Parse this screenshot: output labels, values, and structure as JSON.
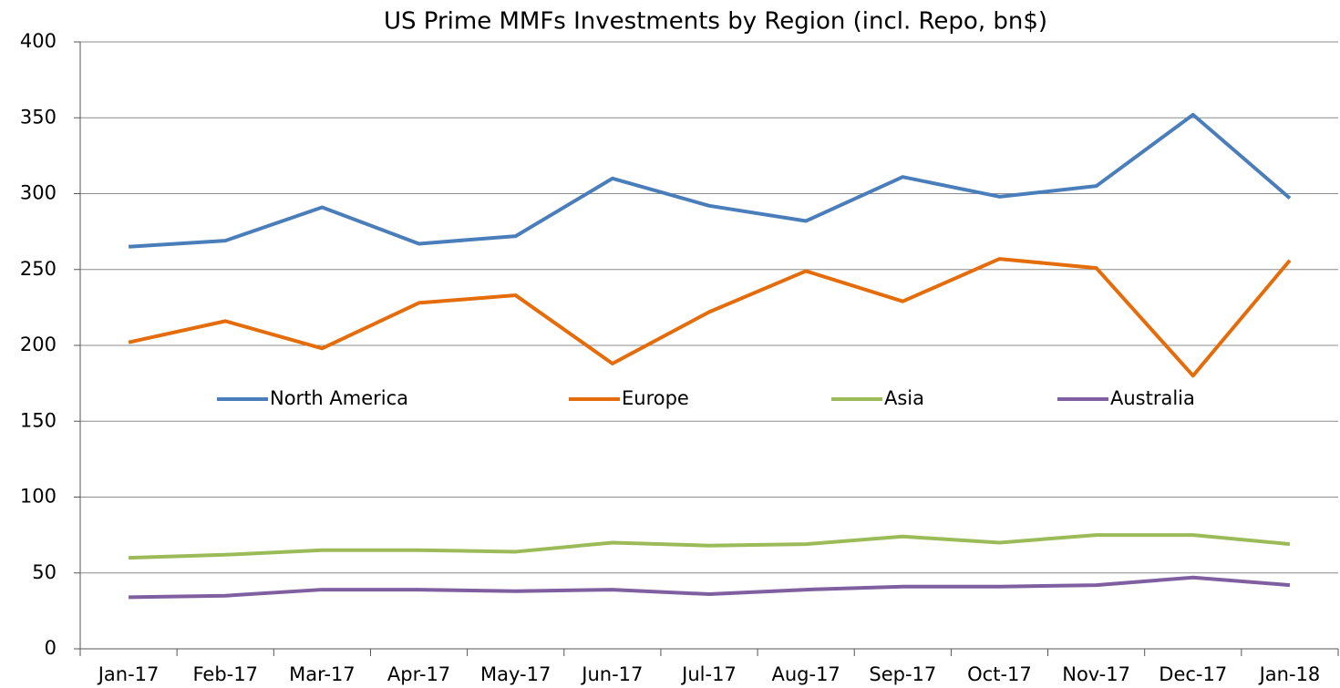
{
  "chart_data": {
    "type": "line",
    "title": "US Prime MMFs Investments by Region (incl. Repo, bn$)",
    "categories": [
      "Jan-17",
      "Feb-17",
      "Mar-17",
      "Apr-17",
      "May-17",
      "Jun-17",
      "Jul-17",
      "Aug-17",
      "Sep-17",
      "Oct-17",
      "Nov-17",
      "Dec-17",
      "Jan-18"
    ],
    "series": [
      {
        "name": "North America",
        "color": "#4a7ebb",
        "values": [
          265,
          269,
          291,
          267,
          272,
          310,
          292,
          282,
          311,
          298,
          305,
          352,
          297
        ]
      },
      {
        "name": "Europe",
        "color": "#e46c0a",
        "values": [
          202,
          216,
          198,
          228,
          233,
          188,
          222,
          249,
          229,
          257,
          251,
          180,
          256
        ]
      },
      {
        "name": "Asia",
        "color": "#9bbb59",
        "values": [
          60,
          62,
          65,
          65,
          64,
          70,
          68,
          69,
          74,
          70,
          75,
          75,
          69
        ]
      },
      {
        "name": "Australia",
        "color": "#7f5fa0",
        "values": [
          34,
          35,
          39,
          39,
          38,
          39,
          36,
          39,
          41,
          41,
          42,
          47,
          42
        ]
      }
    ],
    "ylim": [
      0,
      400
    ],
    "yticks": [
      0,
      50,
      100,
      150,
      200,
      250,
      300,
      350,
      400
    ],
    "grid": true,
    "legend": "center"
  }
}
